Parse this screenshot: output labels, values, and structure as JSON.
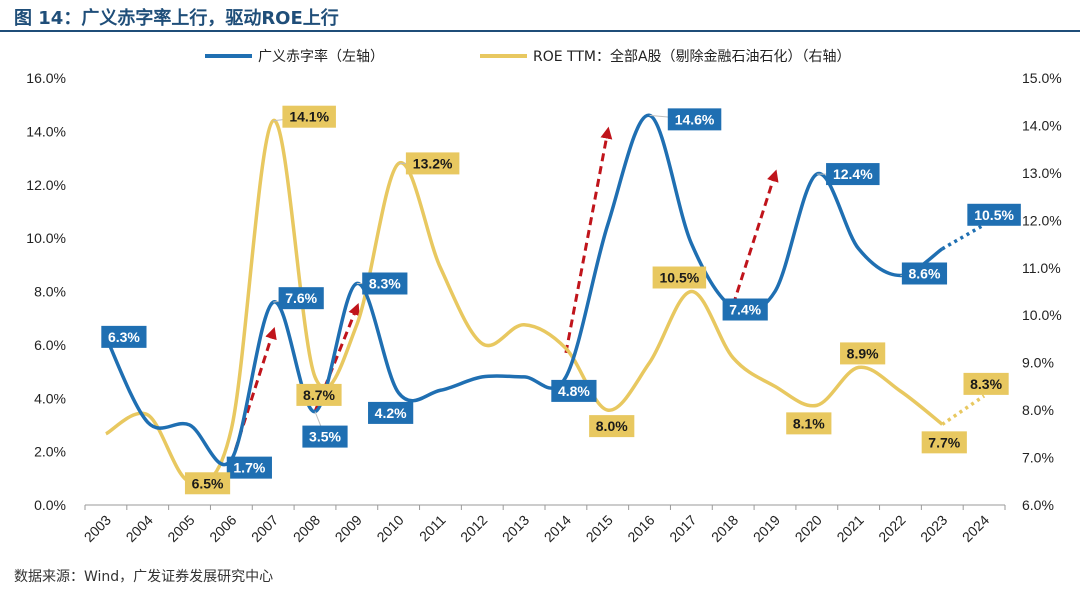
{
  "title": "图 14：广义赤字率上行，驱动ROE上行",
  "source": "数据来源：Wind，广发证券发展研究中心",
  "chart_data": {
    "type": "line",
    "categories": [
      "2003",
      "2004",
      "2005",
      "2006",
      "2007",
      "2008",
      "2009",
      "2010",
      "2011",
      "2012",
      "2013",
      "2014",
      "2015",
      "2016",
      "2017",
      "2018",
      "2019",
      "2020",
      "2021",
      "2022",
      "2023",
      "2024"
    ],
    "y_left": {
      "ylim": [
        0,
        16
      ],
      "ticks": [
        "0.0%",
        "2.0%",
        "4.0%",
        "6.0%",
        "8.0%",
        "10.0%",
        "12.0%",
        "14.0%",
        "16.0%"
      ]
    },
    "y_right": {
      "ylim": [
        6,
        15
      ],
      "ticks": [
        "6.0%",
        "7.0%",
        "8.0%",
        "9.0%",
        "10.0%",
        "11.0%",
        "12.0%",
        "13.0%",
        "14.0%",
        "15.0%"
      ]
    },
    "legend_position": "top",
    "series": [
      {
        "name": "广义赤字率（左轴）",
        "axis": "left",
        "color": "#1f6fb2",
        "values": [
          6.3,
          3.1,
          3.0,
          1.7,
          7.6,
          3.5,
          8.3,
          4.2,
          4.3,
          4.8,
          4.8,
          4.8,
          10.5,
          14.6,
          9.8,
          7.4,
          8.0,
          12.4,
          9.6,
          8.6,
          9.6,
          10.5
        ],
        "forecast_from_index": 20,
        "data_labels": [
          {
            "index": 0,
            "text": "6.3%"
          },
          {
            "index": 3,
            "text": "1.7%"
          },
          {
            "index": 4,
            "text": "7.6%"
          },
          {
            "index": 5,
            "text": "3.5%"
          },
          {
            "index": 6,
            "text": "8.3%"
          },
          {
            "index": 7,
            "text": "4.2%"
          },
          {
            "index": 11,
            "text": "4.8%"
          },
          {
            "index": 13,
            "text": "14.6%"
          },
          {
            "index": 15,
            "text": "7.4%"
          },
          {
            "index": 17,
            "text": "12.4%"
          },
          {
            "index": 19,
            "text": "8.6%"
          },
          {
            "index": 21,
            "text": "10.5%"
          }
        ]
      },
      {
        "name": "ROE TTM：全部A股（剔除金融石油石化）（右轴）",
        "axis": "right",
        "color": "#e8c860",
        "values": [
          7.5,
          7.9,
          6.5,
          7.6,
          14.1,
          8.7,
          9.8,
          13.2,
          11.0,
          9.4,
          9.8,
          9.3,
          8.0,
          9.0,
          10.5,
          9.1,
          8.5,
          8.1,
          8.9,
          8.4,
          7.7,
          8.3
        ],
        "forecast_from_index": 20,
        "data_labels": [
          {
            "index": 2,
            "text": "6.5%"
          },
          {
            "index": 4,
            "text": "14.1%"
          },
          {
            "index": 5,
            "text": "8.7%"
          },
          {
            "index": 7,
            "text": "13.2%"
          },
          {
            "index": 12,
            "text": "8.0%"
          },
          {
            "index": 14,
            "text": "10.5%"
          },
          {
            "index": 17,
            "text": "8.1%"
          },
          {
            "index": 18,
            "text": "8.9%"
          },
          {
            "index": 20,
            "text": "7.7%"
          },
          {
            "index": 21,
            "text": "8.3%"
          }
        ]
      }
    ],
    "arrows": [
      {
        "from": [
          2006,
          1.6
        ],
        "to": [
          2007,
          6.5
        ]
      },
      {
        "from": [
          2008,
          3.5
        ],
        "to": [
          2009,
          7.4
        ]
      },
      {
        "from": [
          2014,
          5.7
        ],
        "to": [
          2015,
          14.0
        ]
      },
      {
        "from": [
          2018,
          7.5
        ],
        "to": [
          2019,
          12.4
        ]
      }
    ],
    "arrow_color": "#c0141b"
  }
}
